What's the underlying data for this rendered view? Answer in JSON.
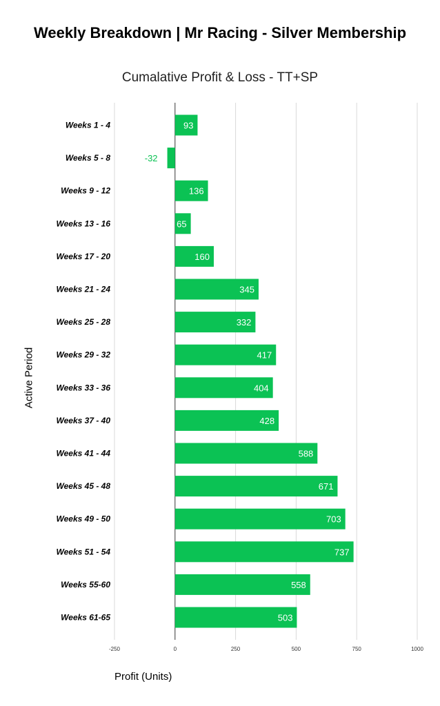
{
  "chart_data": {
    "type": "bar",
    "orientation": "horizontal",
    "title": "Weekly Breakdown | Mr Racing - Silver Membership",
    "subtitle": "Cumalative Profit & Loss - TT+SP",
    "xlabel": "Profit (Units)",
    "ylabel": "Active Period",
    "xlim": [
      -250,
      1000
    ],
    "xticks": [
      "-250",
      "0",
      "250",
      "500",
      "750",
      "1000"
    ],
    "grid": true,
    "bar_color": "#0bc254",
    "categories": [
      "Weeks 1 - 4",
      "Weeks 5 - 8",
      "Weeks 9 - 12",
      "Weeks 13 - 16",
      "Weeks 17 - 20",
      "Weeks 21 - 24",
      "Weeks 25 - 28",
      "Weeks 29 - 32",
      "Weeks 33 - 36",
      "Weeks 37 - 40",
      "Weeks 41 - 44",
      "Weeks 45 - 48",
      "Weeks 49 - 50",
      "Weeks 51 - 54",
      "Weeks 55-60",
      "Weeks 61-65"
    ],
    "values": [
      93,
      -32,
      136,
      65,
      160,
      345,
      332,
      417,
      404,
      428,
      588,
      671,
      703,
      737,
      558,
      503
    ],
    "data_labels": [
      "93",
      "-32",
      "136",
      "65",
      "160",
      "345",
      "332",
      "417",
      "404",
      "428",
      "588",
      "671",
      "703",
      "737",
      "558",
      "503"
    ]
  }
}
